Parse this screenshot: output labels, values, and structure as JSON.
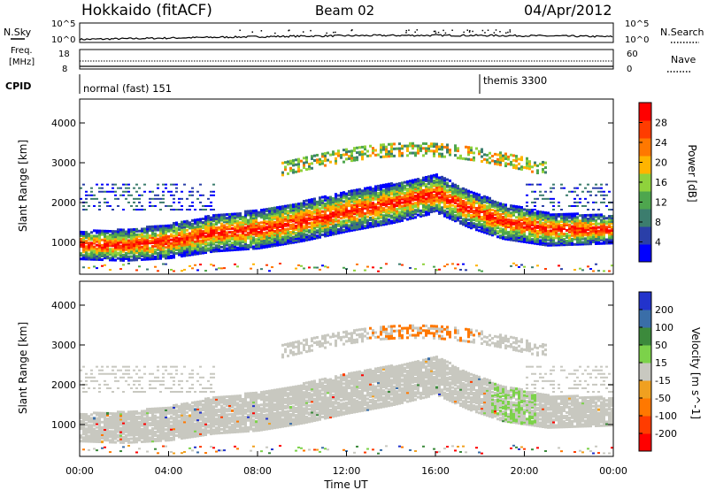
{
  "header": {
    "station": "Hokkaido (fitACF)",
    "beam": "Beam 02",
    "date": "04/Apr/2012"
  },
  "strips": {
    "nsky_label": "N.Sky",
    "nsearch_label": "N.Search",
    "noise_ticks_left": [
      "10^5",
      "10^0"
    ],
    "noise_ticks_right": [
      "10^5",
      "10^0"
    ],
    "freq_label_1": "Freq.",
    "freq_label_2": "[MHz]",
    "freq_ticks": [
      "18",
      "8"
    ],
    "nave_label": "Nave",
    "nave_ticks": [
      "60",
      "0"
    ],
    "cpid_label": "CPID",
    "cpid_modes": [
      {
        "name": "normal (fast) 151",
        "start_hour": 0
      },
      {
        "name": "themis 3300",
        "start_hour": 18
      }
    ]
  },
  "chart_data": [
    {
      "type": "heatmap",
      "name": "Power",
      "ylabel": "Slant Range [km]",
      "ylim": [
        200,
        4600
      ],
      "yticks": [
        1000,
        2000,
        3000,
        4000
      ],
      "colorbar_label": "Power [dB]",
      "colorbar_ticks": [
        4,
        8,
        12,
        16,
        20,
        24,
        28
      ],
      "colorbar_range": [
        0,
        32
      ],
      "colors": [
        "#0000ff",
        "#2a3fa8",
        "#3c7d6e",
        "#4ea64e",
        "#8fd23c",
        "#ffb400",
        "#ff7800",
        "#ff3c00",
        "#ff0000"
      ],
      "band_center_km": [
        {
          "hour": 0,
          "km": 900
        },
        {
          "hour": 2,
          "km": 900
        },
        {
          "hour": 4,
          "km": 1000
        },
        {
          "hour": 6,
          "km": 1200
        },
        {
          "hour": 8,
          "km": 1300
        },
        {
          "hour": 10,
          "km": 1500
        },
        {
          "hour": 12,
          "km": 1750
        },
        {
          "hour": 14,
          "km": 1950
        },
        {
          "hour": 16,
          "km": 2200
        },
        {
          "hour": 17.5,
          "km": 1800
        },
        {
          "hour": 19,
          "km": 1500
        },
        {
          "hour": 21,
          "km": 1300
        },
        {
          "hour": 24,
          "km": 1300
        }
      ]
    },
    {
      "type": "heatmap",
      "name": "Velocity",
      "xlabel": "Time UT",
      "ylabel": "Slant Range [km]",
      "ylim": [
        200,
        4600
      ],
      "yticks": [
        1000,
        2000,
        3000,
        4000
      ],
      "xticks": [
        "00:00",
        "04:00",
        "08:00",
        "12:00",
        "16:00",
        "20:00",
        "00:00"
      ],
      "xlim_hours": [
        0,
        24
      ],
      "colorbar_label": "Velocity [m s^-1]",
      "colorbar_ticks": [
        200,
        100,
        50,
        15,
        -15,
        -50,
        -100,
        -200
      ],
      "colors": [
        "#2233cc",
        "#3a6ea8",
        "#3c8a3c",
        "#7cd24a",
        "#c8c8c0",
        "#f0a020",
        "#ff7800",
        "#ff3c00",
        "#ff0000"
      ]
    }
  ]
}
